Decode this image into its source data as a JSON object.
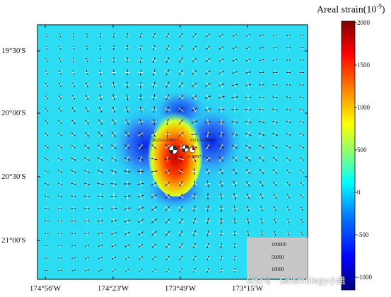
{
  "colorbar": {
    "title": "Areal strain(10",
    "title_exp": "-9",
    "title_close": ")",
    "ticks": [
      "2000",
      "1500",
      "1000",
      "500",
      "0",
      "-500",
      "-1000"
    ],
    "colors": [
      "#00007f",
      "#0000ff",
      "#007fff",
      "#00ffff",
      "#7fff7f",
      "#ffff00",
      "#ff7f00",
      "#ff0000",
      "#7f0000"
    ]
  },
  "axes": {
    "lat_labels": [
      "19°30'S",
      "20°00'S",
      "20°30'S",
      "21°00'S"
    ],
    "lon_labels": [
      "174°56'W",
      "174°23'W",
      "173°49'W",
      "173°15'W"
    ]
  },
  "events": [
    {
      "label": "2023-3-30M6.7"
    },
    {
      "label": "2023-3-30M6.6"
    },
    {
      "label": "3-30M7.1"
    }
  ],
  "legend": {
    "values": [
      "100000",
      "50000",
      "10000"
    ]
  },
  "watermark": "公众号 · Seismology小组"
}
